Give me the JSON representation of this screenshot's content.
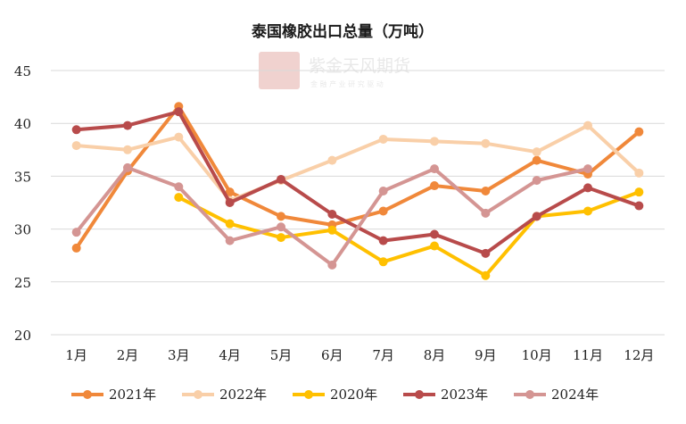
{
  "chart_data": {
    "type": "line",
    "title": "泰国橡胶出口总量（万吨）",
    "categories": [
      "1月",
      "2月",
      "3月",
      "4月",
      "5月",
      "6月",
      "7月",
      "8月",
      "9月",
      "10月",
      "11月",
      "12月"
    ],
    "ylim": [
      20,
      45
    ],
    "yticks": [
      20,
      25,
      30,
      35,
      40,
      45
    ],
    "grid": "horizontal",
    "legend_position": "bottom",
    "series": [
      {
        "name": "2021年",
        "color": "#F0883A",
        "values": [
          28.2,
          35.5,
          41.6,
          33.5,
          31.2,
          30.4,
          31.7,
          34.1,
          33.6,
          36.5,
          35.2,
          39.2
        ]
      },
      {
        "name": "2022年",
        "color": "#F9CFA8",
        "values": [
          37.9,
          37.5,
          38.7,
          32.7,
          34.6,
          36.5,
          38.5,
          38.3,
          38.1,
          37.3,
          39.8,
          35.3
        ]
      },
      {
        "name": "2020年",
        "color": "#FFC000",
        "values": [
          null,
          null,
          33.0,
          30.5,
          29.2,
          29.9,
          26.9,
          28.4,
          25.6,
          31.2,
          31.7,
          33.5
        ]
      },
      {
        "name": "2023年",
        "color": "#B84B4B",
        "values": [
          39.4,
          39.8,
          41.1,
          32.5,
          34.7,
          31.4,
          28.9,
          29.5,
          27.7,
          31.2,
          33.9,
          32.2
        ]
      },
      {
        "name": "2024年",
        "color": "#D49593",
        "values": [
          29.7,
          35.8,
          34.0,
          28.9,
          30.2,
          26.6,
          33.6,
          35.7,
          31.5,
          34.6,
          35.7,
          null
        ]
      }
    ]
  },
  "watermark": {
    "seal_text": "紫金天风",
    "brand": "紫金天风期货",
    "slogan": "金 融 产 业   研 究 驱 动"
  }
}
